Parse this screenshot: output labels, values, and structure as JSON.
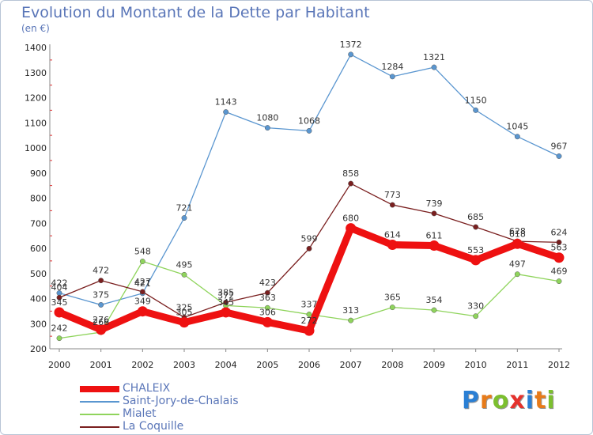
{
  "colors": {
    "axis": "#888888",
    "grid_dots": "#dd3333"
  },
  "logo": {
    "text": "Proxiti",
    "letters": [
      {
        "ch": "P",
        "color": "#2a7fd4"
      },
      {
        "ch": "r",
        "color": "#e77b1a"
      },
      {
        "ch": "o",
        "color": "#7cbf2f"
      },
      {
        "ch": "x",
        "color": "#e5322d"
      },
      {
        "ch": "i",
        "color": "#2a7fd4"
      },
      {
        "ch": "t",
        "color": "#e77b1a"
      },
      {
        "ch": "i",
        "color": "#7cbf2f"
      }
    ]
  },
  "chart_data": {
    "type": "line",
    "title": "Evolution du Montant de la Dette par Habitant",
    "subtitle": "(en €)",
    "xlabel": "",
    "ylabel": "",
    "x": [
      "2000",
      "2001",
      "2002",
      "2003",
      "2004",
      "2005",
      "2006",
      "2007",
      "2008",
      "2009",
      "2010",
      "2011",
      "2012"
    ],
    "ylim": [
      200,
      1400
    ],
    "yticks": [
      200,
      300,
      400,
      500,
      600,
      700,
      800,
      900,
      1000,
      1100,
      1200,
      1300,
      1400
    ],
    "legend_position": "bottom-left",
    "series": [
      {
        "name": "CHALEIX",
        "color": "#ee1111",
        "thick": true,
        "values": [
          345,
          276,
          349,
          305,
          345,
          306,
          272,
          680,
          614,
          611,
          553,
          618,
          563
        ]
      },
      {
        "name": "Saint-Jory-de-Chalais",
        "color": "#5a96d0",
        "thick": false,
        "values": [
          422,
          375,
          421,
          721,
          1143,
          1080,
          1068,
          1372,
          1284,
          1321,
          1150,
          1045,
          967
        ]
      },
      {
        "name": "Mialet",
        "color": "#8fd45c",
        "thick": false,
        "values": [
          242,
          266,
          548,
          495,
          372,
          363,
          337,
          313,
          365,
          354,
          330,
          497,
          469
        ]
      },
      {
        "name": "La Coquille",
        "color": "#7a1f1f",
        "thick": false,
        "values": [
          404,
          472,
          427,
          325,
          385,
          423,
          599,
          858,
          773,
          739,
          685,
          628,
          624
        ]
      }
    ]
  }
}
